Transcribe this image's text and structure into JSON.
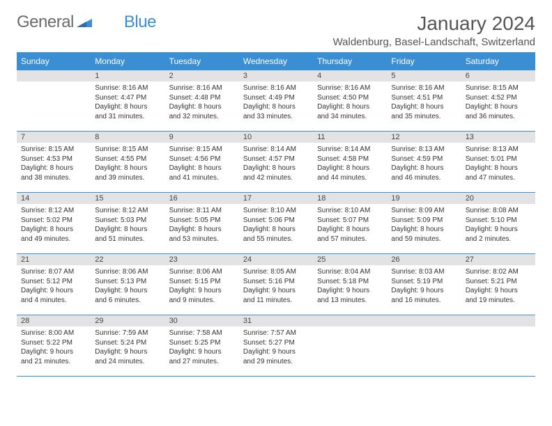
{
  "logo": {
    "text1": "General",
    "text2": "Blue"
  },
  "title": "January 2024",
  "location": "Waldenburg, Basel-Landschaft, Switzerland",
  "colors": {
    "accent": "#3a8fd4",
    "daynum_bg": "#e3e3e3",
    "text": "#333333",
    "title_text": "#555555"
  },
  "day_headers": [
    "Sunday",
    "Monday",
    "Tuesday",
    "Wednesday",
    "Thursday",
    "Friday",
    "Saturday"
  ],
  "weeks": [
    [
      {
        "num": "",
        "lines": []
      },
      {
        "num": "1",
        "lines": [
          "Sunrise: 8:16 AM",
          "Sunset: 4:47 PM",
          "Daylight: 8 hours",
          "and 31 minutes."
        ]
      },
      {
        "num": "2",
        "lines": [
          "Sunrise: 8:16 AM",
          "Sunset: 4:48 PM",
          "Daylight: 8 hours",
          "and 32 minutes."
        ]
      },
      {
        "num": "3",
        "lines": [
          "Sunrise: 8:16 AM",
          "Sunset: 4:49 PM",
          "Daylight: 8 hours",
          "and 33 minutes."
        ]
      },
      {
        "num": "4",
        "lines": [
          "Sunrise: 8:16 AM",
          "Sunset: 4:50 PM",
          "Daylight: 8 hours",
          "and 34 minutes."
        ]
      },
      {
        "num": "5",
        "lines": [
          "Sunrise: 8:16 AM",
          "Sunset: 4:51 PM",
          "Daylight: 8 hours",
          "and 35 minutes."
        ]
      },
      {
        "num": "6",
        "lines": [
          "Sunrise: 8:15 AM",
          "Sunset: 4:52 PM",
          "Daylight: 8 hours",
          "and 36 minutes."
        ]
      }
    ],
    [
      {
        "num": "7",
        "lines": [
          "Sunrise: 8:15 AM",
          "Sunset: 4:53 PM",
          "Daylight: 8 hours",
          "and 38 minutes."
        ]
      },
      {
        "num": "8",
        "lines": [
          "Sunrise: 8:15 AM",
          "Sunset: 4:55 PM",
          "Daylight: 8 hours",
          "and 39 minutes."
        ]
      },
      {
        "num": "9",
        "lines": [
          "Sunrise: 8:15 AM",
          "Sunset: 4:56 PM",
          "Daylight: 8 hours",
          "and 41 minutes."
        ]
      },
      {
        "num": "10",
        "lines": [
          "Sunrise: 8:14 AM",
          "Sunset: 4:57 PM",
          "Daylight: 8 hours",
          "and 42 minutes."
        ]
      },
      {
        "num": "11",
        "lines": [
          "Sunrise: 8:14 AM",
          "Sunset: 4:58 PM",
          "Daylight: 8 hours",
          "and 44 minutes."
        ]
      },
      {
        "num": "12",
        "lines": [
          "Sunrise: 8:13 AM",
          "Sunset: 4:59 PM",
          "Daylight: 8 hours",
          "and 46 minutes."
        ]
      },
      {
        "num": "13",
        "lines": [
          "Sunrise: 8:13 AM",
          "Sunset: 5:01 PM",
          "Daylight: 8 hours",
          "and 47 minutes."
        ]
      }
    ],
    [
      {
        "num": "14",
        "lines": [
          "Sunrise: 8:12 AM",
          "Sunset: 5:02 PM",
          "Daylight: 8 hours",
          "and 49 minutes."
        ]
      },
      {
        "num": "15",
        "lines": [
          "Sunrise: 8:12 AM",
          "Sunset: 5:03 PM",
          "Daylight: 8 hours",
          "and 51 minutes."
        ]
      },
      {
        "num": "16",
        "lines": [
          "Sunrise: 8:11 AM",
          "Sunset: 5:05 PM",
          "Daylight: 8 hours",
          "and 53 minutes."
        ]
      },
      {
        "num": "17",
        "lines": [
          "Sunrise: 8:10 AM",
          "Sunset: 5:06 PM",
          "Daylight: 8 hours",
          "and 55 minutes."
        ]
      },
      {
        "num": "18",
        "lines": [
          "Sunrise: 8:10 AM",
          "Sunset: 5:07 PM",
          "Daylight: 8 hours",
          "and 57 minutes."
        ]
      },
      {
        "num": "19",
        "lines": [
          "Sunrise: 8:09 AM",
          "Sunset: 5:09 PM",
          "Daylight: 8 hours",
          "and 59 minutes."
        ]
      },
      {
        "num": "20",
        "lines": [
          "Sunrise: 8:08 AM",
          "Sunset: 5:10 PM",
          "Daylight: 9 hours",
          "and 2 minutes."
        ]
      }
    ],
    [
      {
        "num": "21",
        "lines": [
          "Sunrise: 8:07 AM",
          "Sunset: 5:12 PM",
          "Daylight: 9 hours",
          "and 4 minutes."
        ]
      },
      {
        "num": "22",
        "lines": [
          "Sunrise: 8:06 AM",
          "Sunset: 5:13 PM",
          "Daylight: 9 hours",
          "and 6 minutes."
        ]
      },
      {
        "num": "23",
        "lines": [
          "Sunrise: 8:06 AM",
          "Sunset: 5:15 PM",
          "Daylight: 9 hours",
          "and 9 minutes."
        ]
      },
      {
        "num": "24",
        "lines": [
          "Sunrise: 8:05 AM",
          "Sunset: 5:16 PM",
          "Daylight: 9 hours",
          "and 11 minutes."
        ]
      },
      {
        "num": "25",
        "lines": [
          "Sunrise: 8:04 AM",
          "Sunset: 5:18 PM",
          "Daylight: 9 hours",
          "and 13 minutes."
        ]
      },
      {
        "num": "26",
        "lines": [
          "Sunrise: 8:03 AM",
          "Sunset: 5:19 PM",
          "Daylight: 9 hours",
          "and 16 minutes."
        ]
      },
      {
        "num": "27",
        "lines": [
          "Sunrise: 8:02 AM",
          "Sunset: 5:21 PM",
          "Daylight: 9 hours",
          "and 19 minutes."
        ]
      }
    ],
    [
      {
        "num": "28",
        "lines": [
          "Sunrise: 8:00 AM",
          "Sunset: 5:22 PM",
          "Daylight: 9 hours",
          "and 21 minutes."
        ]
      },
      {
        "num": "29",
        "lines": [
          "Sunrise: 7:59 AM",
          "Sunset: 5:24 PM",
          "Daylight: 9 hours",
          "and 24 minutes."
        ]
      },
      {
        "num": "30",
        "lines": [
          "Sunrise: 7:58 AM",
          "Sunset: 5:25 PM",
          "Daylight: 9 hours",
          "and 27 minutes."
        ]
      },
      {
        "num": "31",
        "lines": [
          "Sunrise: 7:57 AM",
          "Sunset: 5:27 PM",
          "Daylight: 9 hours",
          "and 29 minutes."
        ]
      },
      {
        "num": "",
        "lines": []
      },
      {
        "num": "",
        "lines": []
      },
      {
        "num": "",
        "lines": []
      }
    ]
  ]
}
